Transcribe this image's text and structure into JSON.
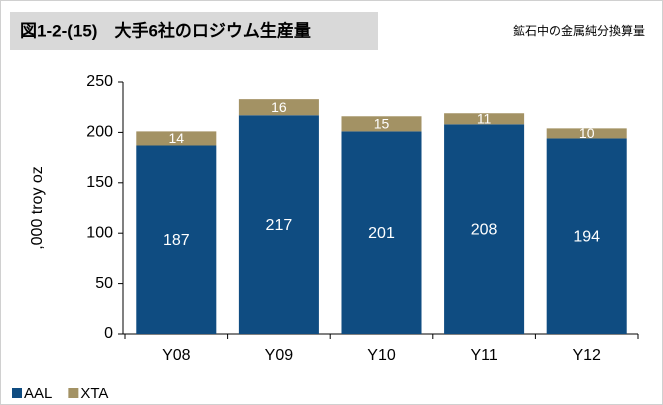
{
  "chart_data": {
    "type": "stacked_bar",
    "title": "図1-2-(15)　大手6社のロジウム生産量",
    "subtitle": "鉱石中の金属純分換算量",
    "y_label": ",000 troy oz",
    "categories": [
      "Y08",
      "Y09",
      "Y10",
      "Y11",
      "Y12"
    ],
    "series": [
      {
        "name": "AAL",
        "color": "#0f4c81",
        "values": [
          187,
          217,
          201,
          208,
          194
        ]
      },
      {
        "name": "XTA",
        "color": "#a39264",
        "values": [
          14,
          16,
          15,
          11,
          10
        ]
      }
    ],
    "ylim": [
      0,
      250
    ],
    "yticks": [
      0,
      50,
      100,
      150,
      200,
      250
    ],
    "grid": false,
    "legend": "bottom-left"
  }
}
